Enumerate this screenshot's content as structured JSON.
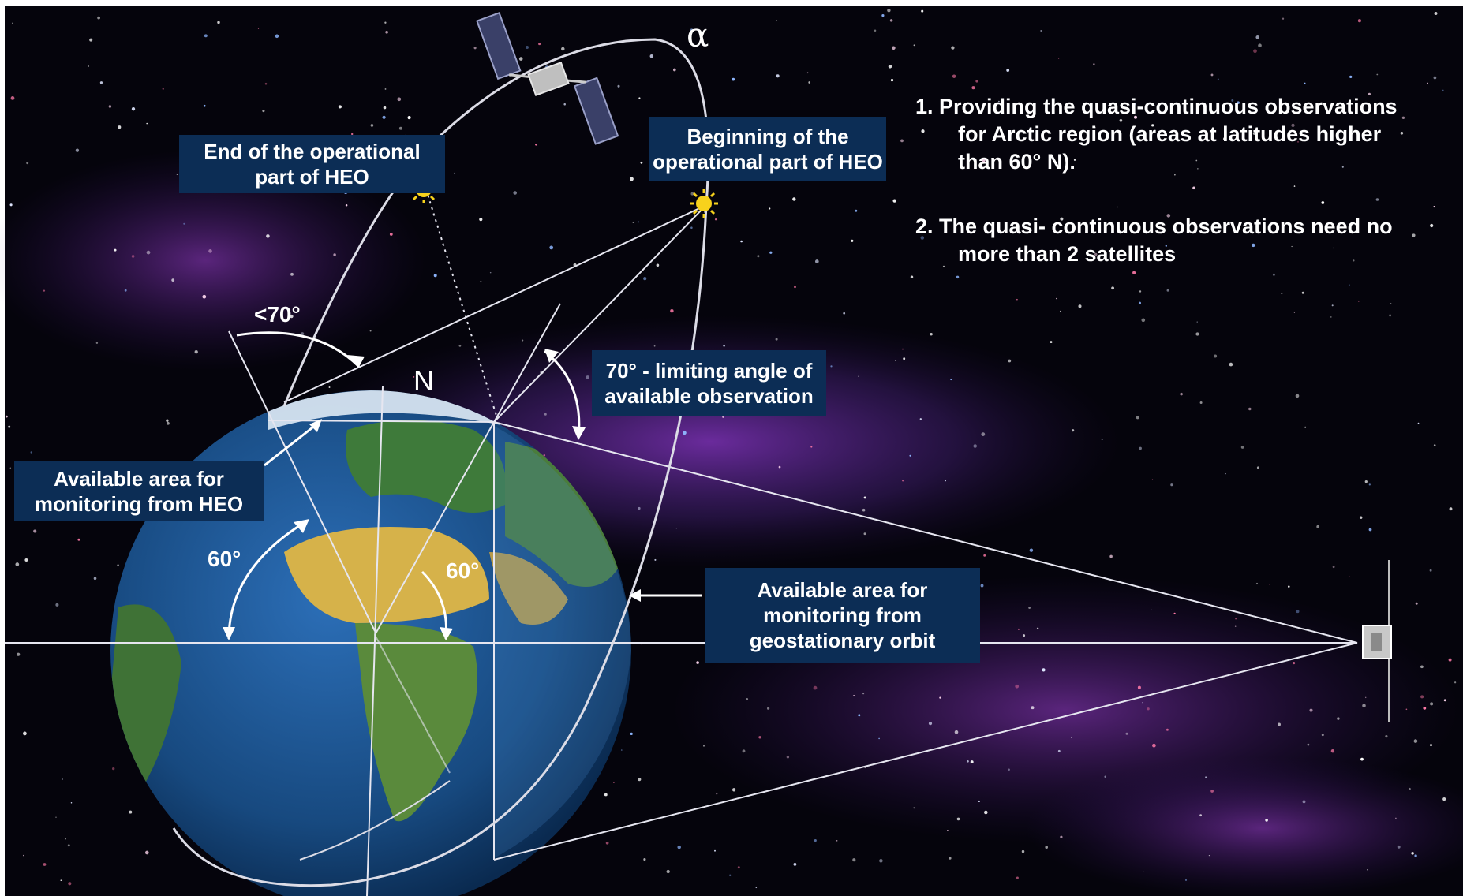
{
  "labels": {
    "end_heo": [
      "End of the operational",
      "part of HEO"
    ],
    "begin_heo": [
      "Beginning of the",
      "operational part of HEO"
    ],
    "limiting_angle": [
      "70° - limiting angle of",
      "available observation"
    ],
    "heo_area": [
      "Available area for",
      "monitoring from HEO"
    ],
    "geo_area": [
      "Available area for",
      "monitoring from",
      "geostationary orbit"
    ]
  },
  "notes": {
    "item1": [
      "1. Providing the quasi-continuous observations",
      "for Arctic region (areas at latitudes higher",
      "than 60° N)."
    ],
    "item2": [
      "2.  The quasi- continuous observations need no",
      "more than 2 satellites"
    ]
  },
  "angles": {
    "lt70": "<70°",
    "sixty_left": "60°",
    "sixty_center": "60°",
    "alpha": "α",
    "north": "N"
  },
  "colors": {
    "space": "#05040c",
    "nebula": "#7a2fb8",
    "label_bg": "#0c2d55",
    "ocean": "#1b4f8f",
    "land_green": "#3e7a3a",
    "desert": "#d6b24a",
    "ice": "#dfeaf5",
    "sun": "#f7d21c"
  },
  "icons": {
    "sun_markers": "sun-icon",
    "heo_satellite": "satellite-icon",
    "geo_satellite": "satellite-icon"
  }
}
